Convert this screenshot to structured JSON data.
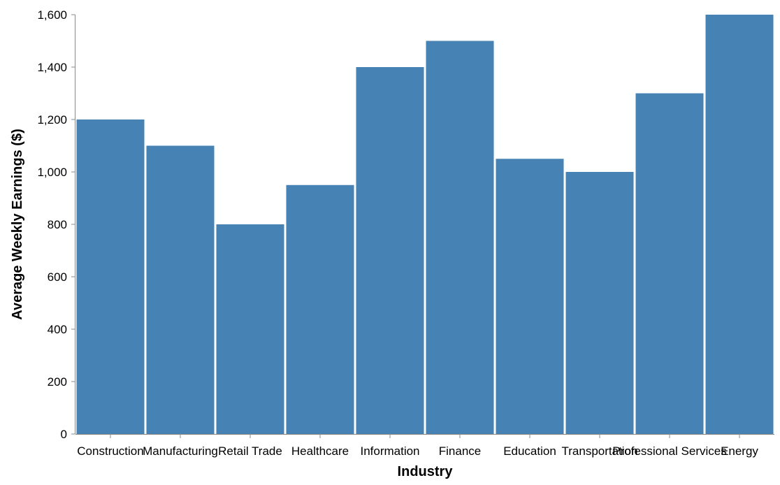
{
  "chart_data": {
    "type": "bar",
    "title": "",
    "xlabel": "Industry",
    "ylabel": "Average Weekly Earnings ($)",
    "categories": [
      "Construction",
      "Manufacturing",
      "Retail Trade",
      "Healthcare",
      "Information",
      "Finance",
      "Education",
      "Transportation",
      "Professional Services",
      "Energy"
    ],
    "values": [
      1200,
      1100,
      800,
      950,
      1400,
      1500,
      1050,
      1000,
      1300,
      1600
    ],
    "ylim": [
      0,
      1600
    ],
    "yticks": [
      0,
      200,
      400,
      600,
      800,
      1000,
      1200,
      1400,
      1600
    ],
    "ytick_labels": [
      "0",
      "200",
      "400",
      "600",
      "800",
      "1,000",
      "1,200",
      "1,400",
      "1,600"
    ],
    "grid": false,
    "legend": "none",
    "colors": {
      "bar": "#4682b4",
      "axis": "#888888",
      "text": "#000000"
    }
  }
}
